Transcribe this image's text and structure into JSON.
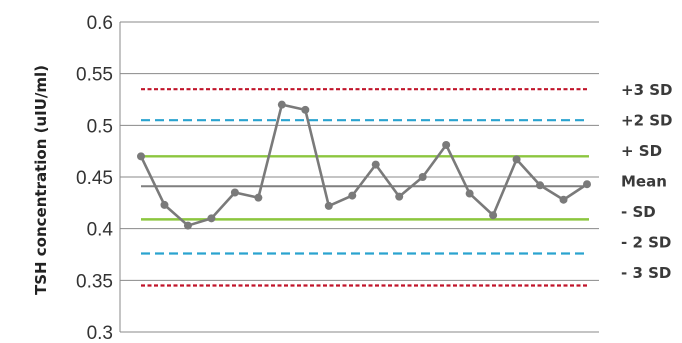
{
  "chart_data": {
    "type": "line",
    "ylabel": "TSH concentration (uIU/ml)",
    "xlabel": "",
    "title": "",
    "ylim": [
      0.3,
      0.6
    ],
    "y_ticks": [
      0.3,
      0.35,
      0.4,
      0.45,
      0.5,
      0.55,
      0.6
    ],
    "y_tick_labels": [
      "0.3",
      "0.35",
      "0.4",
      "0.45",
      "0.5",
      "0.55",
      "0.6"
    ],
    "grid": true,
    "series": [
      {
        "values": [
          0.47,
          0.423,
          0.403,
          0.41,
          0.435,
          0.43,
          0.52,
          0.515,
          0.422,
          0.432,
          0.462,
          0.431,
          0.45,
          0.481,
          0.434,
          0.413,
          0.467,
          0.442,
          0.428,
          0.443
        ],
        "color": "#7a7a7a"
      }
    ],
    "reference_lines": [
      {
        "label": "+3 SD",
        "value": 0.535,
        "color": "#c0142a",
        "style": "dotted"
      },
      {
        "label": "+2 SD",
        "value": 0.505,
        "color": "#2aa3cf",
        "style": "dashed"
      },
      {
        "label": "+ SD",
        "value": 0.47,
        "color": "#8cc63f",
        "style": "solid"
      },
      {
        "label": "Mean",
        "value": 0.441,
        "color": "#7f7f7f",
        "style": "solid"
      },
      {
        "label": "- SD",
        "value": 0.409,
        "color": "#8cc63f",
        "style": "solid"
      },
      {
        "label": "- 2 SD",
        "value": 0.376,
        "color": "#2aa3cf",
        "style": "dashed"
      },
      {
        "label": "- 3 SD",
        "value": 0.345,
        "color": "#c0142a",
        "style": "dotted"
      }
    ]
  }
}
